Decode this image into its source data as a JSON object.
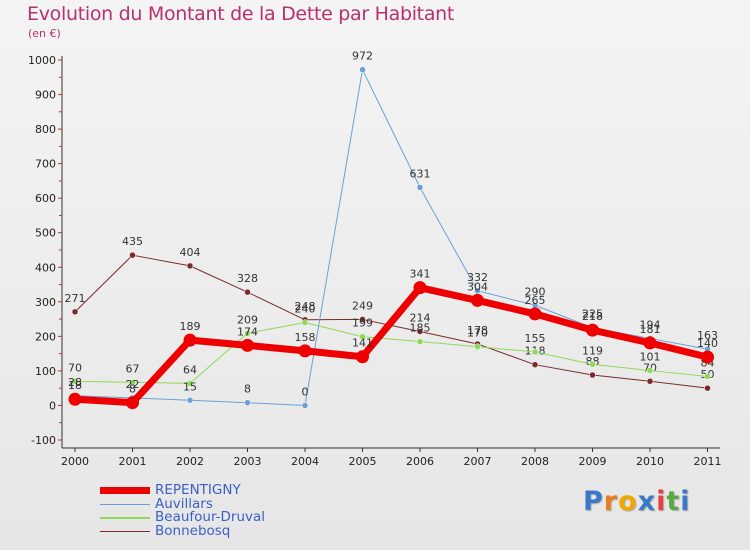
{
  "title": "Evolution du Montant de la Dette par Habitant",
  "subtitle": "(en €)",
  "logo": {
    "text": "Proxiti",
    "colors": [
      "#3a78c8",
      "#e87f1e",
      "#f0a800",
      "#3a78c8",
      "#e84040",
      "#58a845",
      "#3a78c8"
    ]
  },
  "chart_data": {
    "type": "line",
    "x": [
      "2000",
      "2001",
      "2002",
      "2003",
      "2004",
      "2005",
      "2006",
      "2007",
      "2008",
      "2009",
      "2010",
      "2011"
    ],
    "ylim": [
      -100,
      1000
    ],
    "yticks": [
      "1000",
      "900",
      "800",
      "700",
      "600",
      "500",
      "400",
      "300",
      "200",
      "100",
      "0",
      "-100"
    ],
    "grid": false,
    "legend_position": "bottom-left",
    "series": [
      {
        "name": "Bonnebosq",
        "color": "#7a2a2a",
        "width": 1,
        "values": [
          271,
          435,
          404,
          328,
          248,
          249,
          214,
          178,
          118,
          88,
          70,
          50
        ],
        "labels": [
          "271",
          "435",
          "404",
          "328",
          "248",
          "249",
          "214",
          "178",
          "118",
          "88",
          "70",
          "50"
        ]
      },
      {
        "name": "Beaufour-Druval",
        "color": "#8ed85a",
        "width": 1,
        "values": [
          70,
          67,
          64,
          209,
          240,
          199,
          185,
          170,
          155,
          119,
          101,
          84
        ],
        "labels": [
          "70",
          "67",
          "64",
          "209",
          "240",
          "199",
          "185",
          "170",
          "155",
          "119",
          "101",
          "84"
        ]
      },
      {
        "name": "Auvillars",
        "color": "#6aa0d8",
        "width": 1,
        "values": [
          28,
          22,
          15,
          8,
          0,
          972,
          631,
          332,
          290,
          225,
          194,
          163
        ],
        "labels": [
          "28",
          "22",
          "15",
          "8",
          "0",
          "972",
          "631",
          "332",
          "290",
          "225",
          "194",
          "163"
        ]
      },
      {
        "name": "REPENTIGNY",
        "color": "#ee0000",
        "width": 7,
        "values": [
          18,
          8,
          189,
          174,
          158,
          141,
          341,
          304,
          265,
          218,
          181,
          140
        ],
        "labels": [
          "18",
          "8",
          "189",
          "174",
          "158",
          "141",
          "341",
          "304",
          "265",
          "218",
          "181",
          "140"
        ]
      }
    ]
  },
  "legend": {
    "items": [
      {
        "name": "REPENTIGNY",
        "color": "#ee0000"
      },
      {
        "name": "Auvillars",
        "color": "#6aa0d8"
      },
      {
        "name": "Beaufour-Druval",
        "color": "#8ed85a"
      },
      {
        "name": "Bonnebosq",
        "color": "#7a2a2a"
      }
    ]
  }
}
